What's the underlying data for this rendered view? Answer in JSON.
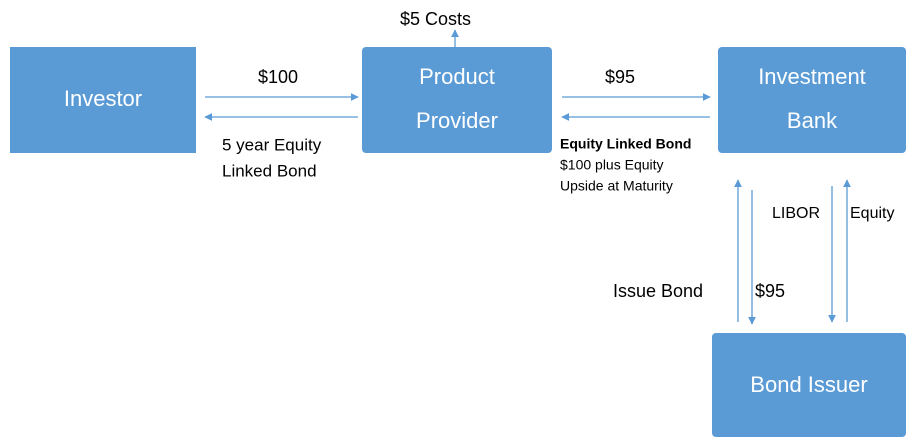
{
  "nodes": [
    {
      "lines": [
        "Investor"
      ]
    },
    {
      "lines": [
        "Product",
        "Provider"
      ]
    },
    {
      "lines": [
        "Investment",
        "Bank"
      ]
    },
    {
      "lines": [
        "Bond Issuer"
      ]
    }
  ],
  "labels": {
    "costs": "$5 Costs",
    "investor_pay": "$100",
    "investor_receive": [
      "5 year Equity",
      "Linked Bond"
    ],
    "provider_pay": "$95",
    "provider_receive_title": "Equity Linked Bond",
    "provider_receive": [
      "$100 plus Equity",
      "Upside at Maturity"
    ],
    "libor": "LIBOR",
    "equity": "Equity",
    "issue_bond": "Issue Bond",
    "issuer_receive": "$95"
  }
}
